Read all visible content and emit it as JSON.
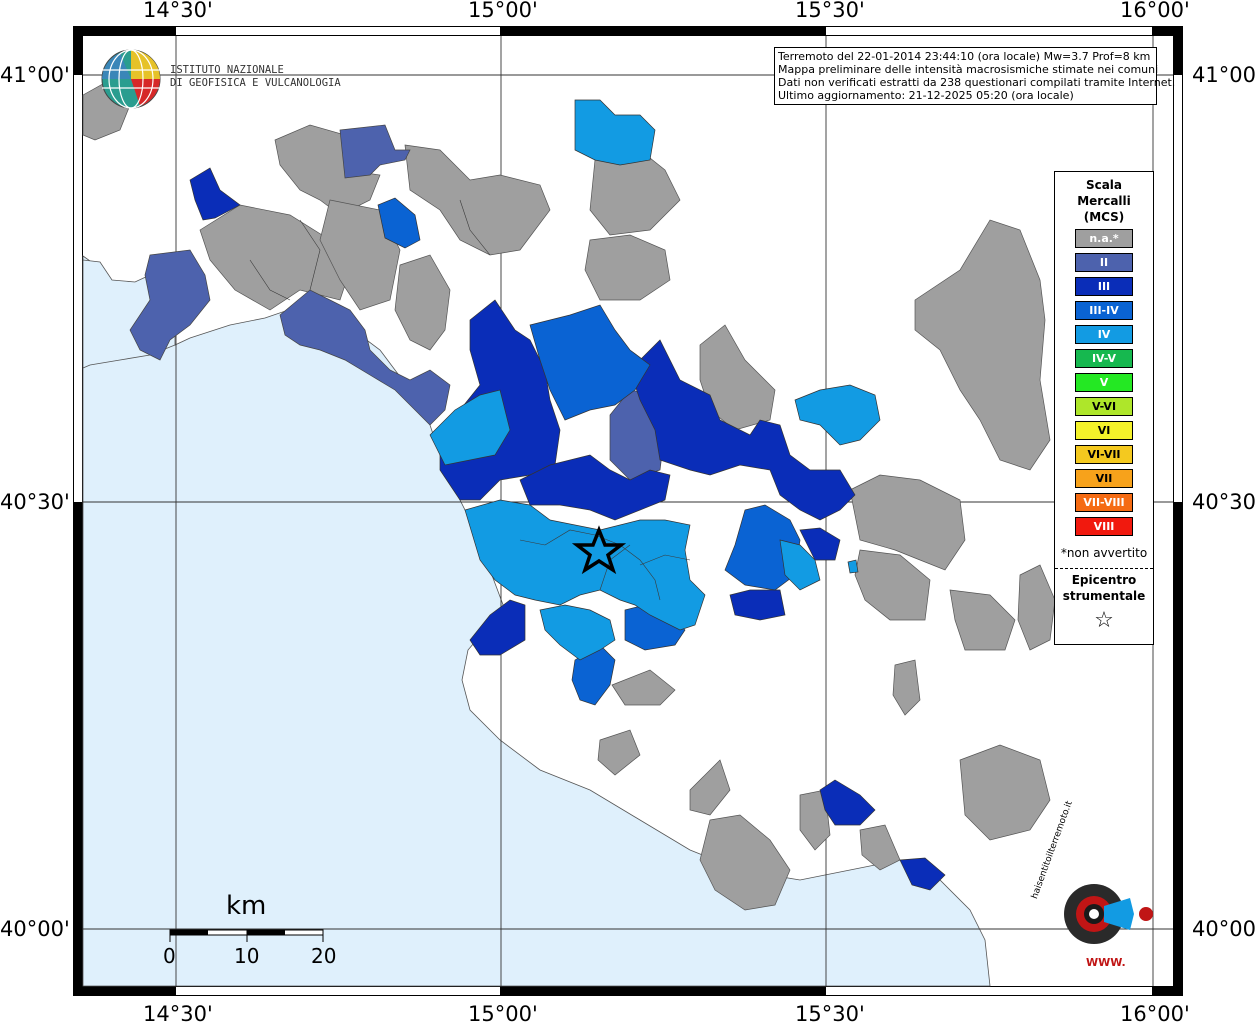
{
  "axes": {
    "top_labels": [
      "14°30'",
      "15°00'",
      "15°30'",
      "16°00'"
    ],
    "bottom_labels": [
      "14°30'",
      "15°00'",
      "15°30'",
      "16°00'"
    ],
    "left_labels": [
      "41°00'",
      "40°30'",
      "40°00'"
    ],
    "right_labels": [
      "41°00'",
      "40°30'",
      "40°00'"
    ]
  },
  "institute": {
    "line1": "ISTITUTO NAZIONALE",
    "line2": "DI GEOFISICA E VULCANOLOGIA"
  },
  "info": {
    "line1": "Terremoto del 22-01-2014 23:44:10 (ora locale) Mw=3.7 Prof=8 km",
    "line2": "Mappa preliminare delle intensità macrosismiche stimate nei comuni",
    "line3": "Dati non verificati estratti da 238 questionari compilati tramite Internet.",
    "line4": "Ultimo aggiornamento: 21-12-2025 05:20 (ora locale)"
  },
  "legend": {
    "title1": "Scala",
    "title2": "Mercalli",
    "title3": "(MCS)",
    "items": [
      {
        "label": "n.a.*",
        "color": "#9f9f9f"
      },
      {
        "label": "II",
        "color": "#4d62ad"
      },
      {
        "label": "III",
        "color": "#0a2db8"
      },
      {
        "label": "III-IV",
        "color": "#0a63d3"
      },
      {
        "label": "IV",
        "color": "#129be3"
      },
      {
        "label": "IV-V",
        "color": "#16b84f"
      },
      {
        "label": "V",
        "color": "#24e823"
      },
      {
        "label": "V-VI",
        "color": "#aee62a"
      },
      {
        "label": "VI",
        "color": "#f4f22a"
      },
      {
        "label": "VI-VII",
        "color": "#f4c91f"
      },
      {
        "label": "VII",
        "color": "#f7a21b"
      },
      {
        "label": "VII-VIII",
        "color": "#f56b13"
      },
      {
        "label": "VIII",
        "color": "#f1190e"
      }
    ],
    "note": "*non avvertito",
    "epic1": "Epicentro",
    "epic2": "strumentale",
    "epic_symbol": "☆"
  },
  "scalebar": {
    "unit": "km",
    "ticks": [
      "0",
      "10",
      "20"
    ]
  },
  "brand": {
    "text": "haisentitoilterremoto.it",
    "www": "WWW.",
    "colors": {
      "sea": "#dff0fc",
      "land": "#ffffff",
      "na": "#9f9f9f",
      "accent": "#c01515"
    }
  }
}
